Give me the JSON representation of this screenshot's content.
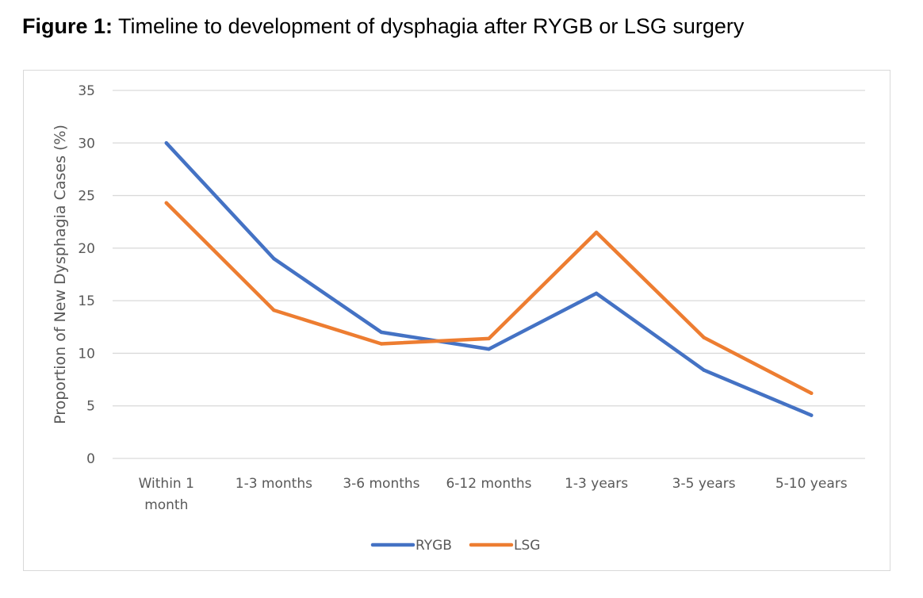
{
  "figure": {
    "label": "Figure 1:",
    "caption": "Timeline to development of dysphagia after RYGB or LSG surgery"
  },
  "chart_data": {
    "type": "line",
    "categories": [
      [
        "Within 1",
        "month"
      ],
      [
        "1-3 months"
      ],
      [
        "3-6 months"
      ],
      [
        "6-12 months"
      ],
      [
        "1-3 years"
      ],
      [
        "3-5 years"
      ],
      [
        "5-10 years"
      ]
    ],
    "series": [
      {
        "name": "RYGB",
        "color": "#4472c4",
        "values": [
          30.0,
          19.0,
          12.0,
          10.4,
          15.7,
          8.4,
          4.1
        ]
      },
      {
        "name": "LSG",
        "color": "#ed7d31",
        "values": [
          24.3,
          14.1,
          10.9,
          11.4,
          21.5,
          11.5,
          6.2
        ]
      }
    ],
    "title": "",
    "xlabel": "",
    "ylabel": "Proportion of New Dysphagia Cases (%)",
    "ylim": [
      0,
      35
    ],
    "yticks": [
      "0",
      "5",
      "10",
      "15",
      "20",
      "25",
      "30",
      "35"
    ],
    "grid": true,
    "gridColor": "#d9d9d9",
    "legend": "bottom-center"
  }
}
